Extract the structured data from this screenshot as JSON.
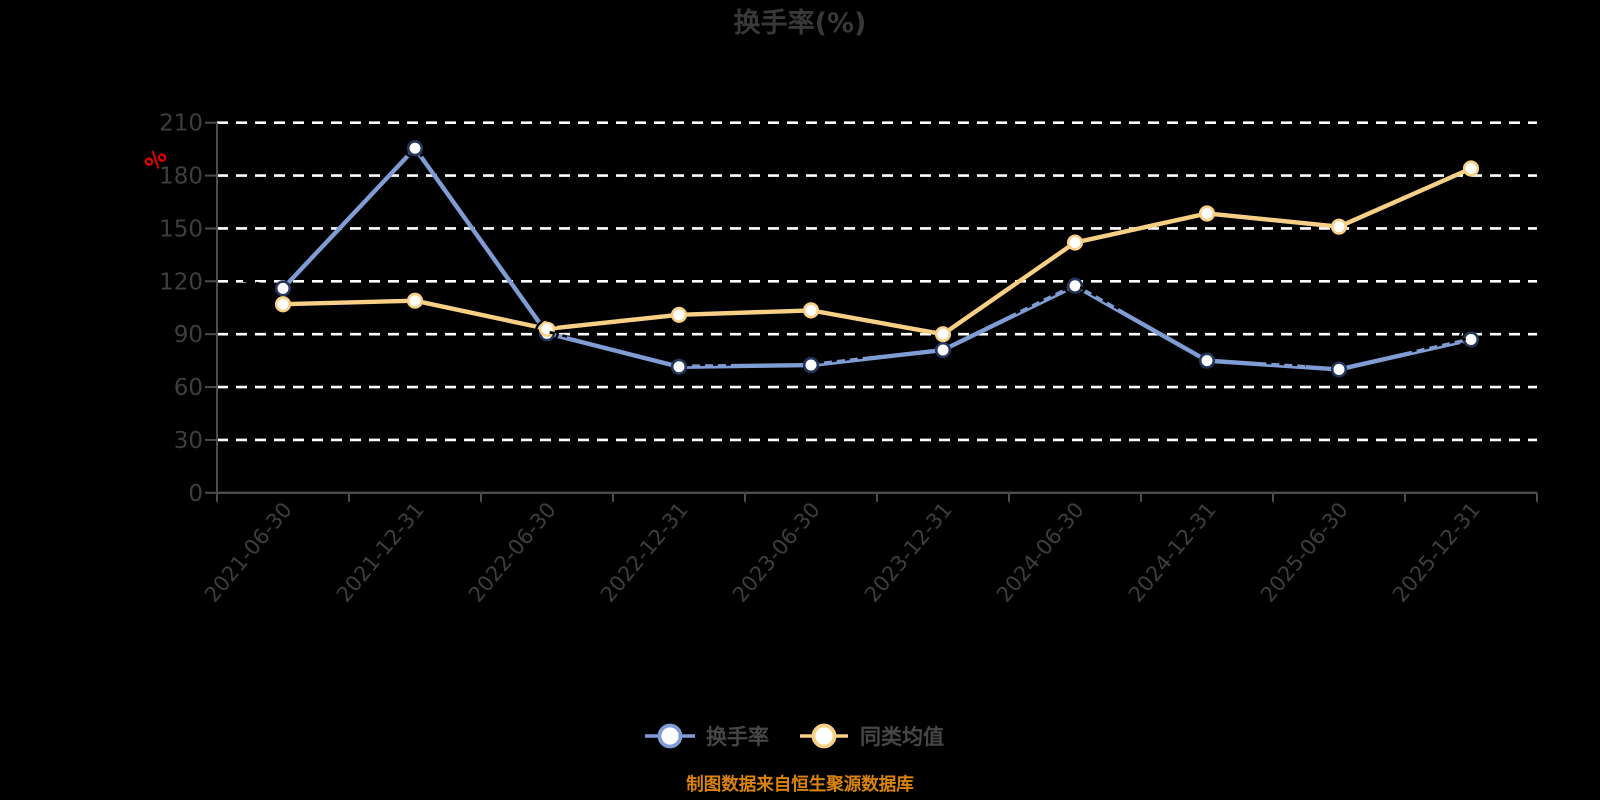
{
  "chart": {
    "title": "换手率(%)",
    "unit_label": "%",
    "source_note": "制图数据来自恒生聚源数据库",
    "legend": [
      {
        "label": "换手率"
      },
      {
        "label": "同类均值"
      }
    ],
    "colors": {
      "background": "#000000",
      "title": "#383838",
      "axis": "#4c4c4c",
      "tick_text": "#3e3e3e",
      "grid": "#ffffff",
      "unit": "#e60000",
      "note": "#d9830c",
      "legend_text": "#464646",
      "series1_line": "#7f9cd4",
      "series1_marker_ring": "#24365e",
      "series2_line": "#f7cf85",
      "marker_fill": "#ffffff"
    }
  },
  "chart_data": {
    "type": "line",
    "title": "换手率(%)",
    "categories": [
      "2021-06-30",
      "2021-12-31",
      "2022-06-30",
      "2022-12-31",
      "2023-06-30",
      "2023-12-31",
      "2024-06-30",
      "2024-12-31",
      "2025-06-30",
      "2025-12-31"
    ],
    "series": [
      {
        "name": "换手率",
        "values": [
          116,
          195.5,
          90.5,
          71.5,
          72.5,
          81,
          117.5,
          75,
          70,
          87
        ]
      },
      {
        "name": "同类均值",
        "values": [
          107,
          109,
          93,
          101,
          103.5,
          90,
          142,
          158.5,
          151,
          184
        ]
      }
    ],
    "ylabel": "%",
    "ylim": [
      0,
      210
    ],
    "ytick_step": 30,
    "grid": "dashed",
    "legend_position": "bottom"
  }
}
